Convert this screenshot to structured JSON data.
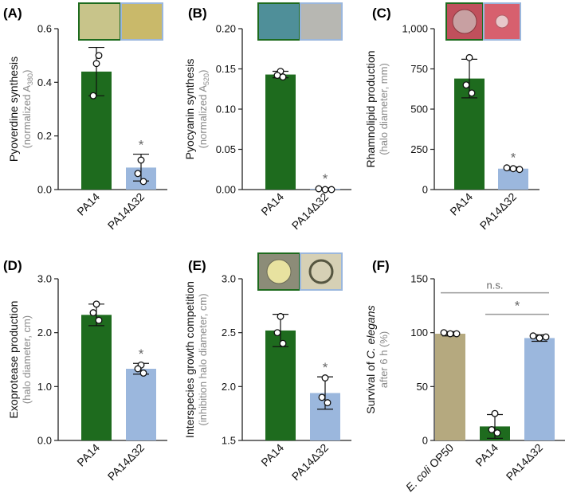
{
  "colors": {
    "pa14": "#1e6b1e",
    "mutant": "#9bb7dd",
    "op50": "#b5a97f",
    "axis": "#222222",
    "sublabel": "#8a8a8a",
    "star": "#666666",
    "bracket": "#999999"
  },
  "chart_data": [
    {
      "panel": "(A)",
      "type": "bar",
      "ylabel": "Pyoverdine synthesis",
      "ysub": "(normalized A",
      "ysub_sub": "380",
      "ysub_tail": ")",
      "ylim": [
        0,
        0.6
      ],
      "ticks": [
        0,
        0.2,
        0.4,
        0.6
      ],
      "tick_labels": [
        "0.0",
        "0.2",
        "0.4",
        "0.6"
      ],
      "categories": [
        "PA14",
        "PA14Δ32"
      ],
      "values": [
        0.44,
        0.082
      ],
      "err": [
        0.09,
        0.05
      ],
      "points": [
        [
          0.47,
          0.35,
          0.5
        ],
        [
          0.11,
          0.06,
          0.03
        ]
      ],
      "stars": [
        "",
        "*"
      ],
      "photo": {
        "left": "#c8c48a",
        "right": "#c9b96a",
        "left_border": "#1e6b1e",
        "right_border": "#9bb7dd"
      }
    },
    {
      "panel": "(B)",
      "type": "bar",
      "ylabel": "Pyocyanin synthesis",
      "ysub": "(normalized A",
      "ysub_sub": "520",
      "ysub_tail": ")",
      "ylim": [
        0,
        0.2
      ],
      "ticks": [
        0,
        0.05,
        0.1,
        0.15,
        0.2
      ],
      "tick_labels": [
        "0.00",
        "0.05",
        "0.10",
        "0.15",
        "0.20"
      ],
      "categories": [
        "PA14",
        "PA14Δ32"
      ],
      "values": [
        0.143,
        0.001
      ],
      "err": [
        0.004,
        0.001
      ],
      "points": [
        [
          0.147,
          0.142,
          0.14
        ],
        [
          0.001,
          0.0,
          0.0
        ]
      ],
      "stars": [
        "",
        "*"
      ],
      "photo": {
        "left": "#4f8f99",
        "right": "#b7b7b2",
        "left_border": "#1e6b1e",
        "right_border": "#9bb7dd"
      }
    },
    {
      "panel": "(C)",
      "type": "bar",
      "ylabel": "Rhamnolipid production",
      "ysub": "(halo diameter, mm)",
      "ysub_sub": "",
      "ysub_tail": "",
      "ylim": [
        0,
        1000
      ],
      "ticks": [
        0,
        250,
        500,
        750,
        1000
      ],
      "tick_labels": [
        "0",
        "250",
        "500",
        "750",
        "1,000"
      ],
      "categories": [
        "PA14",
        "PA14Δ32"
      ],
      "values": [
        690,
        130
      ],
      "err": [
        120,
        10
      ],
      "points": [
        [
          820,
          650,
          600
        ],
        [
          135,
          130,
          125
        ]
      ],
      "stars": [
        "",
        "*"
      ],
      "photo": {
        "left": "#c0505c",
        "right": "#d7606e",
        "left_border": "#1e6b1e",
        "right_border": "#9bb7dd"
      }
    },
    {
      "panel": "(D)",
      "type": "bar",
      "ylabel": "Exoprotease production",
      "ysub": "(halo diameter, cm)",
      "ysub_sub": "",
      "ysub_tail": "",
      "ylim": [
        0,
        3.0
      ],
      "ticks": [
        0,
        1.0,
        2.0,
        3.0
      ],
      "tick_labels": [
        "0.0",
        "1.0",
        "2.0",
        "3.0"
      ],
      "categories": [
        "PA14",
        "PA14Δ32"
      ],
      "values": [
        2.33,
        1.33
      ],
      "err": [
        0.2,
        0.1
      ],
      "points": [
        [
          2.53,
          2.37,
          2.23
        ],
        [
          1.4,
          1.33,
          1.25
        ]
      ],
      "stars": [
        "",
        "*"
      ]
    },
    {
      "panel": "(E)",
      "type": "bar",
      "ylabel": "Interspecies growth competition",
      "ysub": "(inhibition halo diameter, cm)",
      "ysub_sub": "",
      "ysub_tail": "",
      "ylim": [
        1.5,
        3.0
      ],
      "ticks": [
        1.5,
        2.0,
        2.5,
        3.0
      ],
      "tick_labels": [
        "1.5",
        "2.0",
        "2.5",
        "3.0"
      ],
      "categories": [
        "PA14",
        "PA14Δ32"
      ],
      "values": [
        2.52,
        1.94
      ],
      "err": [
        0.15,
        0.15
      ],
      "points": [
        [
          2.65,
          2.5,
          2.4
        ],
        [
          2.08,
          1.9,
          1.85
        ]
      ],
      "stars": [
        "",
        "*"
      ],
      "photo": {
        "left": "#8c8c78",
        "right": "#d6d0b5",
        "left_border": "#1e6b1e",
        "right_border": "#9bb7dd"
      }
    },
    {
      "panel": "(F)",
      "type": "bar",
      "ylabel": "Survival of C. elegans",
      "ylabel_pre": "Survival of ",
      "ylabel_italic": "C. elegans",
      "ysub": "after 6 h (%)",
      "ysub_sub": "",
      "ysub_tail": "",
      "ylim": [
        0,
        150
      ],
      "ticks": [
        0,
        50,
        100,
        150
      ],
      "tick_labels": [
        "0",
        "50",
        "100",
        "150"
      ],
      "categories": [
        "E. coli OP50",
        "PA14",
        "PA14Δ32"
      ],
      "category_italic": [
        "E. coli",
        "",
        ""
      ],
      "category_rest": [
        " OP50",
        "PA14",
        "PA14Δ32"
      ],
      "values": [
        99,
        13,
        95
      ],
      "err": [
        2,
        11,
        3
      ],
      "points": [
        [
          100,
          99,
          99
        ],
        [
          25,
          10,
          7
        ],
        [
          97,
          95,
          96
        ]
      ],
      "stars": [
        "",
        "",
        ""
      ],
      "brackets": [
        {
          "from": 0,
          "to": 2,
          "value": 137,
          "label": "n.s."
        },
        {
          "from": 1,
          "to": 2,
          "value": 117,
          "label": "*"
        }
      ]
    }
  ]
}
